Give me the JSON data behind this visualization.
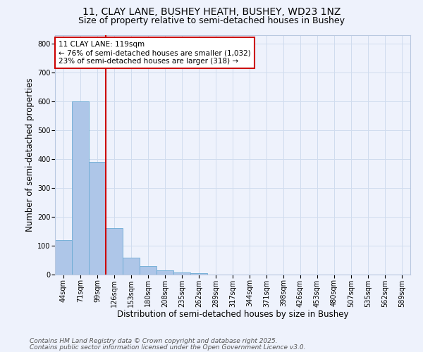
{
  "title_line1": "11, CLAY LANE, BUSHEY HEATH, BUSHEY, WD23 1NZ",
  "title_line2": "Size of property relative to semi-detached houses in Bushey",
  "xlabel": "Distribution of semi-detached houses by size in Bushey",
  "ylabel": "Number of semi-detached properties",
  "categories": [
    "44sqm",
    "71sqm",
    "99sqm",
    "126sqm",
    "153sqm",
    "180sqm",
    "208sqm",
    "235sqm",
    "262sqm",
    "289sqm",
    "317sqm",
    "344sqm",
    "371sqm",
    "398sqm",
    "426sqm",
    "453sqm",
    "480sqm",
    "507sqm",
    "535sqm",
    "562sqm",
    "589sqm"
  ],
  "values": [
    120,
    600,
    390,
    160,
    58,
    30,
    15,
    7,
    5,
    0,
    0,
    0,
    0,
    0,
    0,
    0,
    0,
    0,
    0,
    0,
    0
  ],
  "bar_color": "#aec6e8",
  "bar_edge_color": "#6aaad4",
  "vline_color": "#cc0000",
  "annotation_line1": "11 CLAY LANE: 119sqm",
  "annotation_line2": "← 76% of semi-detached houses are smaller (1,032)",
  "annotation_line3": "23% of semi-detached houses are larger (318) →",
  "annotation_box_color": "#ffffff",
  "annotation_box_edge": "#cc0000",
  "ylim": [
    0,
    830
  ],
  "yticks": [
    0,
    100,
    200,
    300,
    400,
    500,
    600,
    700,
    800
  ],
  "grid_color": "#d0dcee",
  "background_color": "#eef2fc",
  "footnote1": "Contains HM Land Registry data © Crown copyright and database right 2025.",
  "footnote2": "Contains public sector information licensed under the Open Government Licence v3.0.",
  "title_fontsize": 10,
  "subtitle_fontsize": 9,
  "axis_label_fontsize": 8.5,
  "tick_fontsize": 7,
  "annotation_fontsize": 7.5,
  "footnote_fontsize": 6.5
}
